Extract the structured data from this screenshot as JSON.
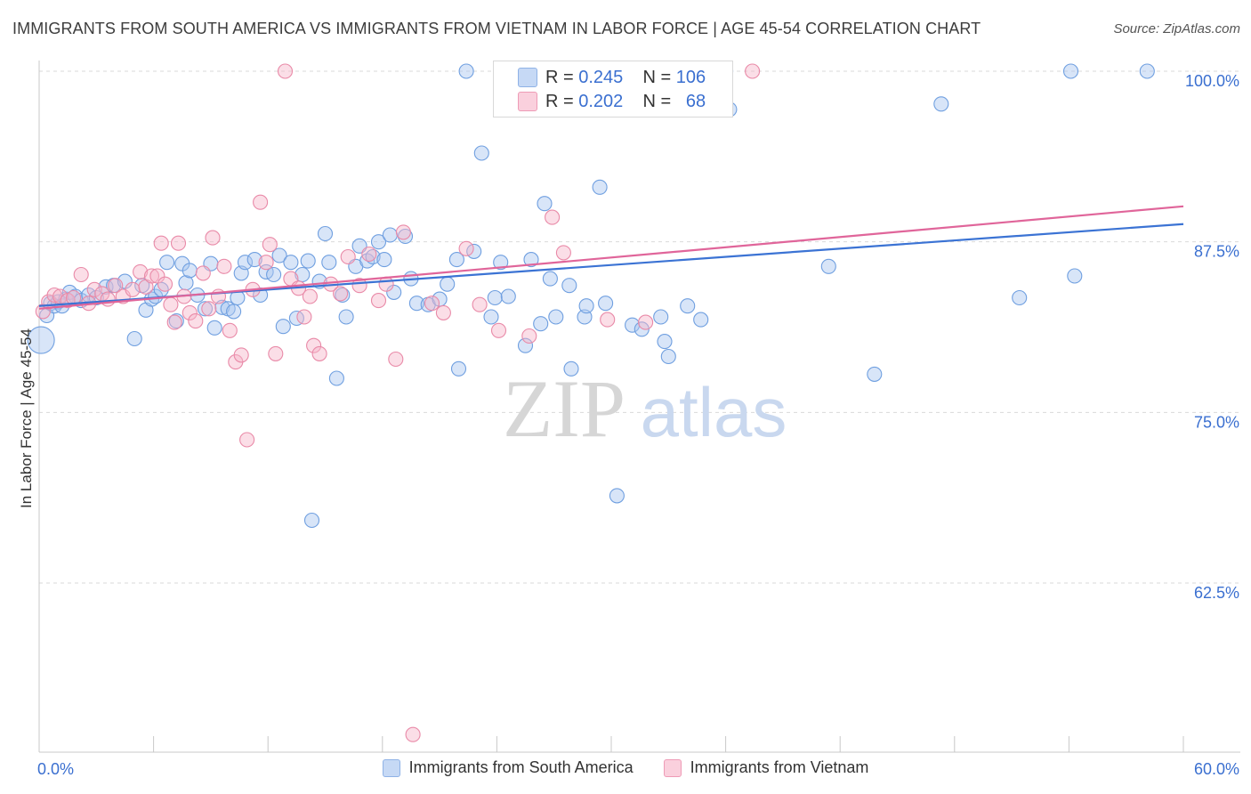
{
  "title": "IMMIGRANTS FROM SOUTH AMERICA VS IMMIGRANTS FROM VIETNAM IN LABOR FORCE | AGE 45-54 CORRELATION CHART",
  "source": "Source: ZipAtlas.com",
  "watermark": {
    "zip": "ZIP",
    "atlas": "atlas"
  },
  "stats": {
    "r_label": "R =",
    "n_label": "N =",
    "blue": {
      "r": "0.245",
      "n": "106",
      "color": "#a9c6f0"
    },
    "pink": {
      "r": "0.202",
      "n": "68",
      "color": "#f6b6ca"
    }
  },
  "legend": {
    "blue_label": "Immigrants from South America",
    "pink_label": "Immigrants from Vietnam"
  },
  "chart_data": {
    "type": "scatter",
    "title": "IMMIGRANTS FROM SOUTH AMERICA VS IMMIGRANTS FROM VIETNAM IN LABOR FORCE | AGE 45-54 CORRELATION CHART",
    "xlabel": "",
    "ylabel": "In Labor Force | Age 45-54",
    "xlim": [
      0,
      60
    ],
    "ylim": [
      50,
      100
    ],
    "x_tick_labels": [
      "0.0%",
      "60.0%"
    ],
    "y_ticks": [
      62.5,
      75.0,
      87.5,
      100.0
    ],
    "y_tick_labels": [
      "62.5%",
      "75.0%",
      "87.5%",
      "100.0%"
    ],
    "grid": "horizontal dashed",
    "series": [
      {
        "name": "Immigrants from South America",
        "color": "#6f9fe0",
        "fill": "#a9c6f0",
        "trend": {
          "x": [
            0,
            60
          ],
          "y": [
            82.8,
            88.8
          ]
        },
        "points": [
          [
            0.1,
            80.3
          ],
          [
            0.4,
            82.1
          ],
          [
            0.6,
            83.0
          ],
          [
            0.8,
            82.8
          ],
          [
            1.0,
            83.1
          ],
          [
            1.2,
            82.8
          ],
          [
            1.4,
            83.3
          ],
          [
            1.6,
            83.8
          ],
          [
            1.9,
            83.5
          ],
          [
            2.2,
            83.2
          ],
          [
            2.6,
            83.6
          ],
          [
            3.0,
            83.4
          ],
          [
            3.5,
            84.2
          ],
          [
            3.9,
            84.3
          ],
          [
            4.5,
            84.6
          ],
          [
            5.0,
            80.4
          ],
          [
            5.4,
            84.3
          ],
          [
            5.6,
            82.5
          ],
          [
            5.9,
            83.3
          ],
          [
            6.1,
            83.5
          ],
          [
            6.4,
            84.0
          ],
          [
            6.7,
            86.0
          ],
          [
            7.2,
            81.7
          ],
          [
            7.5,
            85.9
          ],
          [
            7.7,
            84.5
          ],
          [
            7.9,
            85.4
          ],
          [
            8.3,
            83.6
          ],
          [
            8.7,
            82.6
          ],
          [
            9.0,
            85.9
          ],
          [
            9.2,
            81.2
          ],
          [
            9.6,
            82.7
          ],
          [
            9.9,
            82.6
          ],
          [
            10.2,
            82.4
          ],
          [
            10.4,
            83.4
          ],
          [
            10.6,
            85.2
          ],
          [
            10.8,
            86.0
          ],
          [
            11.3,
            86.2
          ],
          [
            11.6,
            83.6
          ],
          [
            11.9,
            85.3
          ],
          [
            12.3,
            85.1
          ],
          [
            12.6,
            86.5
          ],
          [
            12.8,
            81.3
          ],
          [
            13.2,
            86.0
          ],
          [
            13.5,
            81.9
          ],
          [
            13.8,
            85.1
          ],
          [
            14.1,
            86.1
          ],
          [
            14.3,
            67.1
          ],
          [
            14.7,
            84.6
          ],
          [
            15.0,
            88.1
          ],
          [
            15.2,
            86.0
          ],
          [
            15.6,
            77.5
          ],
          [
            15.9,
            83.6
          ],
          [
            16.1,
            82.0
          ],
          [
            16.6,
            85.7
          ],
          [
            16.8,
            87.2
          ],
          [
            17.2,
            86.1
          ],
          [
            17.5,
            86.4
          ],
          [
            17.8,
            87.5
          ],
          [
            18.1,
            86.2
          ],
          [
            18.4,
            88.0
          ],
          [
            18.6,
            83.8
          ],
          [
            19.2,
            87.9
          ],
          [
            19.5,
            84.8
          ],
          [
            19.8,
            83.0
          ],
          [
            20.4,
            82.9
          ],
          [
            21.0,
            83.3
          ],
          [
            21.4,
            84.4
          ],
          [
            21.9,
            86.2
          ],
          [
            22.0,
            78.2
          ],
          [
            22.4,
            100.0
          ],
          [
            22.8,
            86.8
          ],
          [
            23.2,
            94.0
          ],
          [
            23.7,
            82.0
          ],
          [
            23.9,
            83.4
          ],
          [
            24.2,
            86.0
          ],
          [
            24.6,
            83.5
          ],
          [
            25.2,
            100.0
          ],
          [
            25.5,
            79.9
          ],
          [
            25.8,
            86.2
          ],
          [
            26.3,
            81.5
          ],
          [
            26.5,
            90.3
          ],
          [
            26.8,
            84.8
          ],
          [
            27.1,
            82.0
          ],
          [
            27.8,
            84.3
          ],
          [
            27.9,
            78.2
          ],
          [
            28.6,
            82.0
          ],
          [
            28.7,
            82.8
          ],
          [
            29.4,
            91.5
          ],
          [
            29.7,
            83.0
          ],
          [
            30.3,
            68.9
          ],
          [
            31.1,
            81.4
          ],
          [
            31.6,
            81.1
          ],
          [
            32.6,
            82.0
          ],
          [
            32.8,
            80.2
          ],
          [
            33.0,
            79.1
          ],
          [
            34.0,
            82.8
          ],
          [
            34.7,
            81.8
          ],
          [
            36.0,
            100.0
          ],
          [
            36.2,
            97.2
          ],
          [
            41.4,
            85.7
          ],
          [
            43.8,
            77.8
          ],
          [
            47.3,
            97.6
          ],
          [
            51.4,
            83.4
          ],
          [
            54.1,
            100.0
          ],
          [
            54.3,
            85.0
          ],
          [
            58.1,
            100.0
          ]
        ]
      },
      {
        "name": "Immigrants from Vietnam",
        "color": "#e98aa8",
        "fill": "#f6b6ca",
        "trend": {
          "x": [
            0,
            60
          ],
          "y": [
            82.6,
            90.1
          ]
        },
        "points": [
          [
            0.2,
            82.4
          ],
          [
            0.5,
            83.1
          ],
          [
            0.8,
            83.6
          ],
          [
            1.1,
            83.5
          ],
          [
            1.5,
            83.2
          ],
          [
            1.8,
            83.4
          ],
          [
            2.2,
            85.1
          ],
          [
            2.6,
            83.0
          ],
          [
            2.9,
            84.0
          ],
          [
            3.3,
            83.7
          ],
          [
            3.6,
            83.3
          ],
          [
            4.0,
            84.3
          ],
          [
            4.4,
            83.5
          ],
          [
            4.9,
            84.0
          ],
          [
            5.3,
            85.3
          ],
          [
            5.6,
            84.2
          ],
          [
            5.9,
            85.0
          ],
          [
            6.2,
            85.0
          ],
          [
            6.4,
            87.4
          ],
          [
            6.6,
            84.4
          ],
          [
            6.9,
            82.9
          ],
          [
            7.1,
            81.6
          ],
          [
            7.3,
            87.4
          ],
          [
            7.6,
            83.5
          ],
          [
            7.9,
            82.3
          ],
          [
            8.2,
            81.7
          ],
          [
            8.6,
            85.2
          ],
          [
            8.9,
            82.6
          ],
          [
            9.1,
            87.8
          ],
          [
            9.4,
            83.5
          ],
          [
            9.7,
            85.7
          ],
          [
            10.0,
            81.0
          ],
          [
            10.3,
            78.7
          ],
          [
            10.6,
            79.2
          ],
          [
            10.9,
            73.0
          ],
          [
            11.2,
            84.0
          ],
          [
            11.6,
            90.4
          ],
          [
            11.9,
            86.0
          ],
          [
            12.1,
            87.3
          ],
          [
            12.4,
            79.3
          ],
          [
            12.9,
            100.0
          ],
          [
            13.2,
            84.8
          ],
          [
            13.6,
            84.1
          ],
          [
            13.9,
            82.0
          ],
          [
            14.2,
            83.5
          ],
          [
            14.4,
            79.9
          ],
          [
            14.7,
            79.3
          ],
          [
            15.3,
            84.4
          ],
          [
            15.8,
            83.7
          ],
          [
            16.2,
            86.4
          ],
          [
            16.8,
            84.3
          ],
          [
            17.3,
            86.6
          ],
          [
            17.8,
            83.2
          ],
          [
            18.2,
            84.4
          ],
          [
            18.7,
            78.9
          ],
          [
            19.1,
            88.2
          ],
          [
            19.6,
            51.4
          ],
          [
            20.6,
            83.0
          ],
          [
            21.2,
            82.3
          ],
          [
            22.4,
            87.0
          ],
          [
            23.1,
            82.9
          ],
          [
            24.1,
            81.0
          ],
          [
            25.7,
            80.6
          ],
          [
            26.9,
            89.3
          ],
          [
            27.5,
            86.7
          ],
          [
            29.8,
            81.8
          ],
          [
            31.8,
            81.6
          ],
          [
            37.4,
            100.0
          ]
        ]
      }
    ]
  }
}
